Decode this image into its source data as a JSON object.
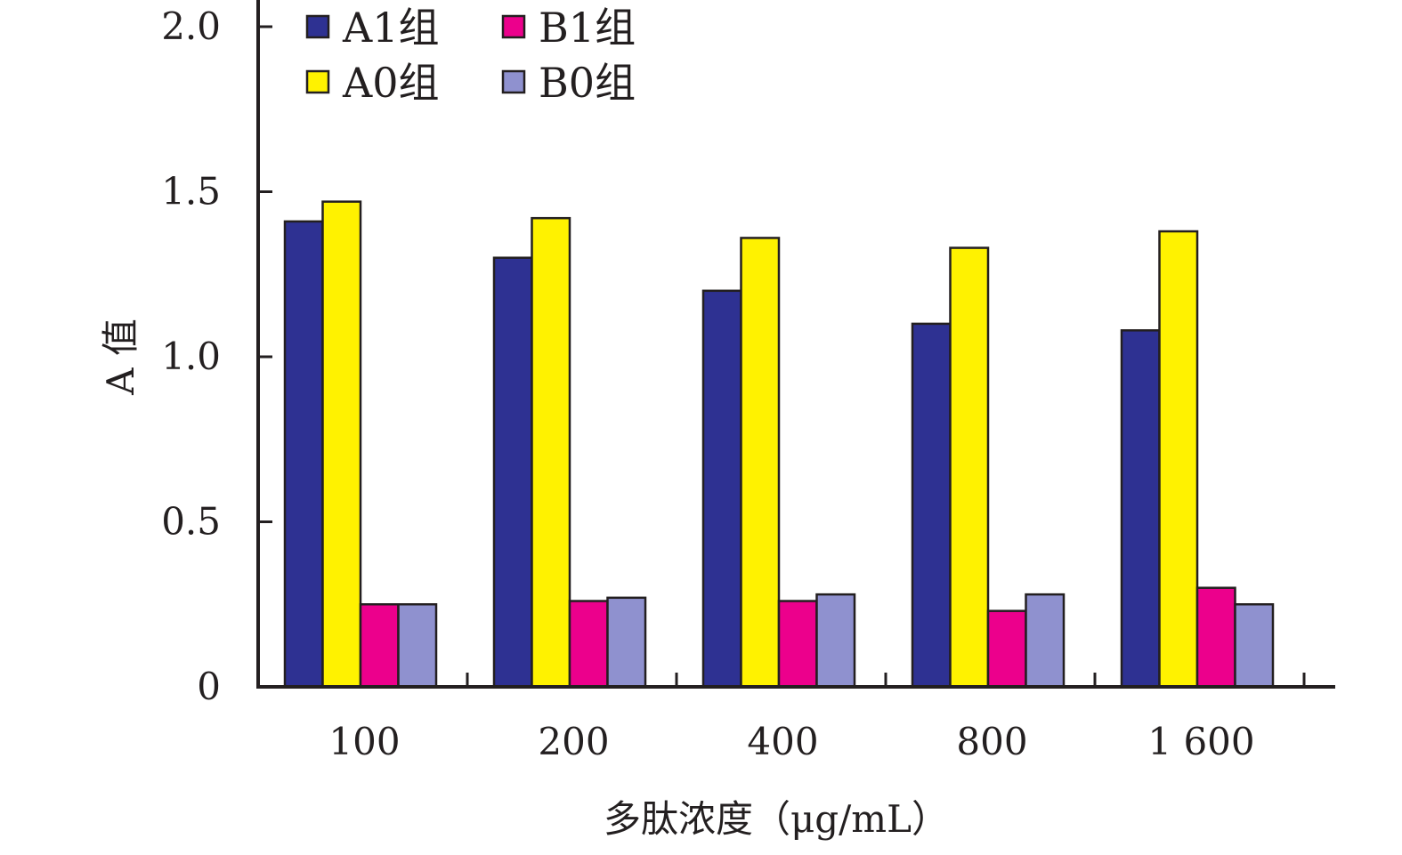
{
  "chart_data": {
    "type": "bar",
    "title": "",
    "xlabel": "多肽浓度（μg/mL）",
    "ylabel": "A 值",
    "categories": [
      "100",
      "200",
      "400",
      "800",
      "1 600"
    ],
    "ylim": [
      0,
      2.0
    ],
    "yticks": [
      0,
      0.5,
      1.0,
      1.5,
      2.0
    ],
    "ytick_labels": [
      "0",
      "0.5",
      "1.0",
      "1.5",
      "2.0"
    ],
    "grid": false,
    "legend_position": "top-left",
    "series": [
      {
        "name": "A1组",
        "color": "#2e3192",
        "values": [
          1.41,
          1.3,
          1.2,
          1.1,
          1.08
        ]
      },
      {
        "name": "A0组",
        "color": "#fff200",
        "values": [
          1.47,
          1.42,
          1.36,
          1.33,
          1.38
        ]
      },
      {
        "name": "B1组",
        "color": "#ec008c",
        "values": [
          0.25,
          0.26,
          0.26,
          0.23,
          0.3
        ]
      },
      {
        "name": "B0组",
        "color": "#8f91cf",
        "values": [
          0.25,
          0.27,
          0.28,
          0.28,
          0.25
        ]
      }
    ]
  }
}
